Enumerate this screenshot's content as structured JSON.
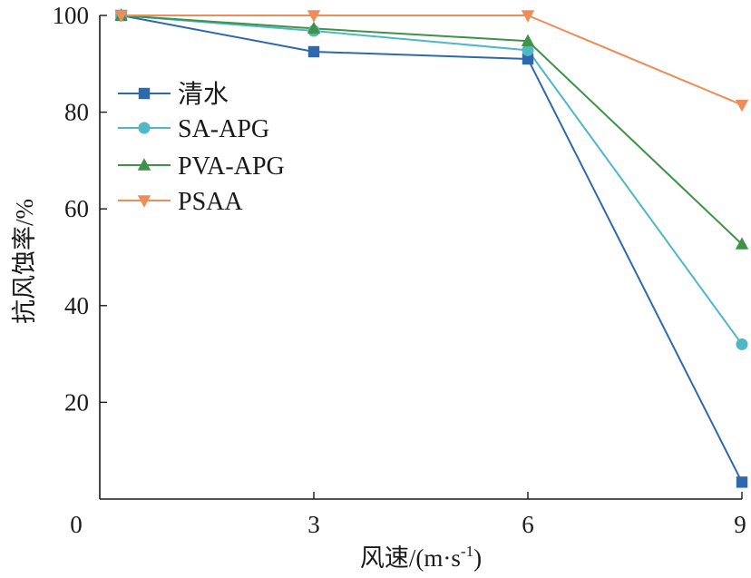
{
  "chart_data": {
    "type": "line",
    "title": "",
    "xlabel_text": "风速/(m·s",
    "xlabel_sup": "-1",
    "xlabel_end": ")",
    "ylabel": "抗风蚀率/%",
    "x": [
      0.3,
      3,
      6,
      9
    ],
    "x_tick_values": [
      0,
      3,
      6,
      9
    ],
    "x_tick_labels": [
      "0",
      "3",
      "6",
      "9"
    ],
    "xlim": [
      0,
      9
    ],
    "y_tick_values": [
      20,
      40,
      60,
      80,
      100
    ],
    "y_tick_labels": [
      "20",
      "40",
      "60",
      "80",
      "100"
    ],
    "ylim": [
      0,
      100
    ],
    "grid": false,
    "legend_position": "upper-left",
    "series": [
      {
        "name": "清水",
        "marker": "square",
        "color": "#2f68ad",
        "values": [
          100,
          92.5,
          91,
          3.5
        ]
      },
      {
        "name": "SA-APG",
        "marker": "circle",
        "color": "#4fb7c5",
        "values": [
          100,
          96.8,
          92.8,
          32
        ]
      },
      {
        "name": "PVA-APG",
        "marker": "triangle-up",
        "color": "#3f9248",
        "values": [
          100,
          97.3,
          94.7,
          52.7
        ]
      },
      {
        "name": "PSAA",
        "marker": "triangle-down",
        "color": "#f08c57",
        "values": [
          100,
          100,
          100,
          81.5
        ]
      }
    ]
  }
}
